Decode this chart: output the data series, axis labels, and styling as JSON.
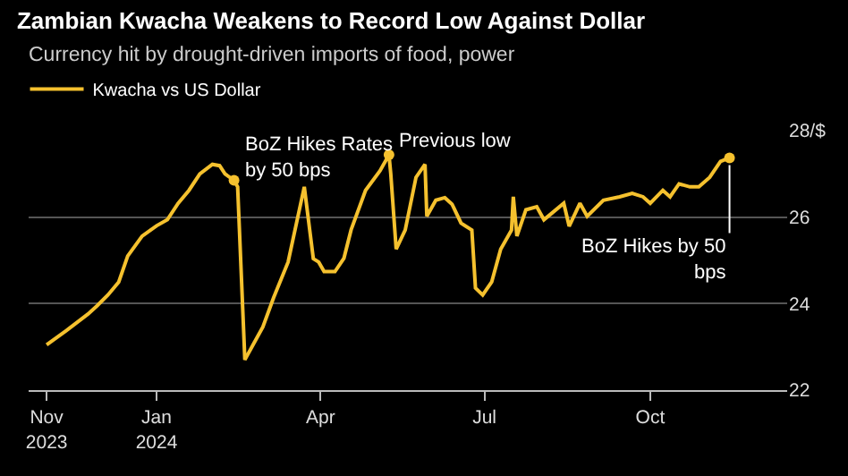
{
  "chart_data": {
    "type": "line",
    "title": "Zambian Kwacha Weakens to Record Low Against Dollar",
    "subtitle": "Currency hit by drought-driven imports of food, power",
    "x": [
      "2023-11-01",
      "2023-11-12",
      "2023-11-24",
      "2023-11-29",
      "2023-12-05",
      "2023-12-11",
      "2023-12-16",
      "2023-12-24",
      "2024-01-01",
      "2024-01-07",
      "2024-01-13",
      "2024-01-19",
      "2024-01-25",
      "2024-02-01",
      "2024-02-05",
      "2024-02-08",
      "2024-02-13",
      "2024-02-15",
      "2024-02-19",
      "2024-02-24",
      "2024-02-29",
      "2024-03-06",
      "2024-03-14",
      "2024-03-23",
      "2024-03-28",
      "2024-03-31",
      "2024-04-03",
      "2024-04-09",
      "2024-04-14",
      "2024-04-18",
      "2024-04-26",
      "2024-05-04",
      "2024-05-09",
      "2024-05-10",
      "2024-05-13",
      "2024-05-18",
      "2024-05-24",
      "2024-05-29",
      "2024-05-30",
      "2024-06-04",
      "2024-06-09",
      "2024-06-13",
      "2024-06-18",
      "2024-06-24",
      "2024-06-26",
      "2024-06-30",
      "2024-07-05",
      "2024-07-10",
      "2024-07-16",
      "2024-07-17",
      "2024-07-19",
      "2024-07-24",
      "2024-07-30",
      "2024-08-03",
      "2024-08-14",
      "2024-08-17",
      "2024-08-23",
      "2024-08-27",
      "2024-09-05",
      "2024-09-14",
      "2024-09-21",
      "2024-09-27",
      "2024-10-01",
      "2024-10-08",
      "2024-10-12",
      "2024-10-17",
      "2024-10-23",
      "2024-10-28",
      "2024-11-03",
      "2024-11-09",
      "2024-11-14"
    ],
    "series": [
      {
        "name": "Kwacha vs US Dollar",
        "color": "#f5c12e",
        "values": [
          23.05,
          23.38,
          23.76,
          23.95,
          24.2,
          24.5,
          25.1,
          25.56,
          25.8,
          25.94,
          26.32,
          26.62,
          27.0,
          27.22,
          27.19,
          27.0,
          26.85,
          26.7,
          22.7,
          23.08,
          23.46,
          24.14,
          24.96,
          26.7,
          25.04,
          24.96,
          24.74,
          24.74,
          25.05,
          25.71,
          26.62,
          27.07,
          27.44,
          27.0,
          25.26,
          25.7,
          26.92,
          27.22,
          26.02,
          26.39,
          26.45,
          26.3,
          25.86,
          25.7,
          24.36,
          24.2,
          24.5,
          25.26,
          25.7,
          26.47,
          25.56,
          26.17,
          26.24,
          25.94,
          26.32,
          25.79,
          26.32,
          26.02,
          26.39,
          26.47,
          26.55,
          26.47,
          26.32,
          26.62,
          26.47,
          26.77,
          26.7,
          26.7,
          26.92,
          27.29,
          27.37
        ]
      }
    ],
    "ylim": [
      22,
      28
    ],
    "yticks": [
      22,
      24,
      26,
      {
        "value": 28,
        "label": "28/$"
      }
    ],
    "xlim": [
      "2023-10-22",
      "2024-12-16"
    ],
    "xticks": [
      {
        "value": "2023-11-01",
        "label": "Nov\n2023"
      },
      {
        "value": "2024-01-01",
        "label": "Jan\n2024"
      },
      {
        "value": "2024-04-01",
        "label": "Apr"
      },
      {
        "value": "2024-07-01",
        "label": "Jul"
      },
      {
        "value": "2024-10-01",
        "label": "Oct"
      }
    ],
    "annotations": [
      {
        "text": "BoZ Hikes Rates\nby 50 bps",
        "x": "2024-02-13",
        "y": 26.85
      },
      {
        "text": "Previous low",
        "x": "2024-05-09",
        "y": 27.44
      },
      {
        "text": "BoZ Hikes by 50\nbps",
        "x": "2024-11-14",
        "y": 27.37
      }
    ],
    "grid": "y",
    "legend": "top left",
    "marker": "none",
    "line_style": "solid"
  }
}
